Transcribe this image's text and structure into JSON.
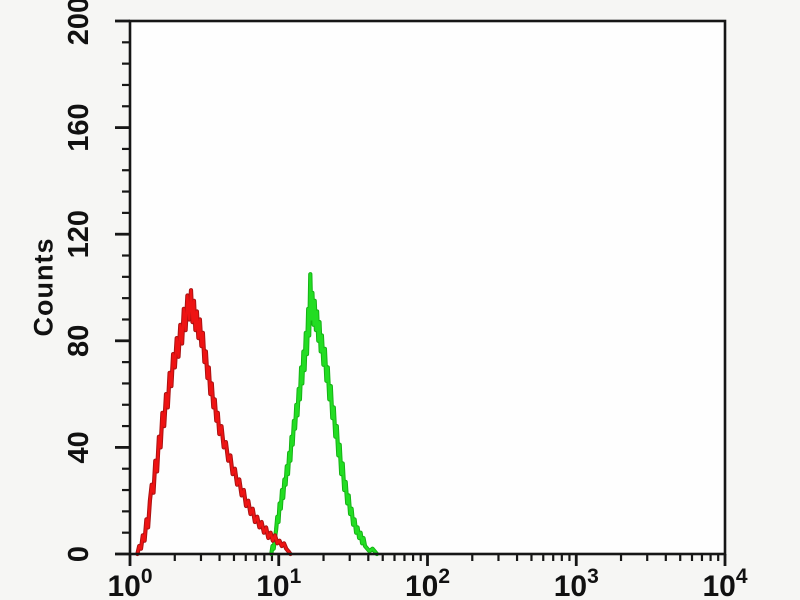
{
  "page": {
    "background": "#f6f6f4",
    "plot_background": "#fefefe",
    "axis_color": "#161616"
  },
  "chart_data": {
    "type": "line",
    "subtype": "flow-cytometry-histogram-overlay",
    "title": "",
    "xlabel": "",
    "ylabel": "Counts",
    "x_scale": "log10",
    "x_base_label": "10",
    "x_decade_exponents": [
      0,
      1,
      2,
      3,
      4
    ],
    "xlim_log": [
      0,
      4
    ],
    "ylim": [
      0,
      200
    ],
    "y_major_ticks": [
      0,
      40,
      80,
      120,
      160,
      200
    ],
    "y_minor_step": 8,
    "grid": false,
    "legend": null,
    "series": [
      {
        "name": "green-histogram",
        "color": "#22dd22",
        "edge_color": "#14b014",
        "peak_x_log": 1.21,
        "peak_counts": 105,
        "points": [
          [
            0.95,
            0
          ],
          [
            0.958,
            3
          ],
          [
            0.966,
            2
          ],
          [
            0.974,
            6
          ],
          [
            0.982,
            9
          ],
          [
            0.99,
            14
          ],
          [
            0.998,
            12
          ],
          [
            1.006,
            19
          ],
          [
            1.014,
            17
          ],
          [
            1.022,
            24
          ],
          [
            1.03,
            21
          ],
          [
            1.038,
            28
          ],
          [
            1.046,
            26
          ],
          [
            1.054,
            33
          ],
          [
            1.062,
            30
          ],
          [
            1.07,
            38
          ],
          [
            1.078,
            35
          ],
          [
            1.086,
            44
          ],
          [
            1.094,
            41
          ],
          [
            1.102,
            50
          ],
          [
            1.11,
            47
          ],
          [
            1.118,
            56
          ],
          [
            1.126,
            52
          ],
          [
            1.134,
            62
          ],
          [
            1.142,
            58
          ],
          [
            1.15,
            70
          ],
          [
            1.158,
            64
          ],
          [
            1.166,
            76
          ],
          [
            1.174,
            69
          ],
          [
            1.182,
            83
          ],
          [
            1.19,
            75
          ],
          [
            1.198,
            92
          ],
          [
            1.205,
            82
          ],
          [
            1.212,
            105
          ],
          [
            1.219,
            88
          ],
          [
            1.226,
            98
          ],
          [
            1.234,
            86
          ],
          [
            1.242,
            95
          ],
          [
            1.25,
            84
          ],
          [
            1.258,
            91
          ],
          [
            1.266,
            80
          ],
          [
            1.274,
            87
          ],
          [
            1.282,
            76
          ],
          [
            1.29,
            82
          ],
          [
            1.3,
            71
          ],
          [
            1.31,
            77
          ],
          [
            1.32,
            65
          ],
          [
            1.33,
            70
          ],
          [
            1.34,
            58
          ],
          [
            1.35,
            63
          ],
          [
            1.36,
            51
          ],
          [
            1.37,
            55
          ],
          [
            1.38,
            44
          ],
          [
            1.39,
            48
          ],
          [
            1.4,
            37
          ],
          [
            1.41,
            41
          ],
          [
            1.42,
            30
          ],
          [
            1.43,
            34
          ],
          [
            1.44,
            24
          ],
          [
            1.45,
            27
          ],
          [
            1.46,
            19
          ],
          [
            1.47,
            22
          ],
          [
            1.48,
            15
          ],
          [
            1.49,
            17
          ],
          [
            1.5,
            11
          ],
          [
            1.51,
            13
          ],
          [
            1.52,
            8
          ],
          [
            1.53,
            10
          ],
          [
            1.54,
            6
          ],
          [
            1.55,
            8
          ],
          [
            1.56,
            4
          ],
          [
            1.57,
            6
          ],
          [
            1.58,
            3
          ],
          [
            1.595,
            2
          ],
          [
            1.61,
            1
          ],
          [
            1.63,
            2
          ],
          [
            1.645,
            1
          ],
          [
            1.66,
            0
          ]
        ]
      },
      {
        "name": "red-histogram",
        "color": "#ee1313",
        "edge_color": "#a81111",
        "peak_x_log": 0.41,
        "peak_counts": 99,
        "points": [
          [
            0.05,
            0
          ],
          [
            0.062,
            3
          ],
          [
            0.074,
            2
          ],
          [
            0.086,
            7
          ],
          [
            0.098,
            5
          ],
          [
            0.11,
            13
          ],
          [
            0.122,
            10
          ],
          [
            0.134,
            20
          ],
          [
            0.146,
            26
          ],
          [
            0.158,
            23
          ],
          [
            0.17,
            35
          ],
          [
            0.182,
            31
          ],
          [
            0.194,
            44
          ],
          [
            0.206,
            40
          ],
          [
            0.218,
            53
          ],
          [
            0.23,
            48
          ],
          [
            0.242,
            60
          ],
          [
            0.254,
            55
          ],
          [
            0.266,
            68
          ],
          [
            0.278,
            63
          ],
          [
            0.29,
            75
          ],
          [
            0.302,
            70
          ],
          [
            0.314,
            81
          ],
          [
            0.326,
            74
          ],
          [
            0.338,
            86
          ],
          [
            0.35,
            79
          ],
          [
            0.362,
            92
          ],
          [
            0.374,
            84
          ],
          [
            0.386,
            97
          ],
          [
            0.398,
            88
          ],
          [
            0.41,
            99
          ],
          [
            0.42,
            87
          ],
          [
            0.43,
            95
          ],
          [
            0.44,
            84
          ],
          [
            0.45,
            91
          ],
          [
            0.46,
            81
          ],
          [
            0.47,
            88
          ],
          [
            0.48,
            78
          ],
          [
            0.49,
            83
          ],
          [
            0.5,
            72
          ],
          [
            0.51,
            76
          ],
          [
            0.52,
            66
          ],
          [
            0.53,
            70
          ],
          [
            0.54,
            60
          ],
          [
            0.55,
            64
          ],
          [
            0.56,
            55
          ],
          [
            0.57,
            58
          ],
          [
            0.58,
            50
          ],
          [
            0.59,
            53
          ],
          [
            0.6,
            45
          ],
          [
            0.615,
            48
          ],
          [
            0.63,
            40
          ],
          [
            0.645,
            42
          ],
          [
            0.66,
            35
          ],
          [
            0.675,
            37
          ],
          [
            0.69,
            30
          ],
          [
            0.705,
            32
          ],
          [
            0.72,
            26
          ],
          [
            0.735,
            28
          ],
          [
            0.75,
            22
          ],
          [
            0.765,
            24
          ],
          [
            0.78,
            18
          ],
          [
            0.795,
            20
          ],
          [
            0.81,
            15
          ],
          [
            0.825,
            17
          ],
          [
            0.84,
            12
          ],
          [
            0.855,
            14
          ],
          [
            0.87,
            10
          ],
          [
            0.885,
            12
          ],
          [
            0.9,
            8
          ],
          [
            0.915,
            10
          ],
          [
            0.93,
            6
          ],
          [
            0.945,
            8
          ],
          [
            0.96,
            5
          ],
          [
            0.975,
            7
          ],
          [
            0.99,
            4
          ],
          [
            1.005,
            5
          ],
          [
            1.02,
            3
          ],
          [
            1.035,
            4
          ],
          [
            1.05,
            2
          ],
          [
            1.065,
            1
          ],
          [
            1.078,
            0
          ]
        ]
      }
    ]
  }
}
